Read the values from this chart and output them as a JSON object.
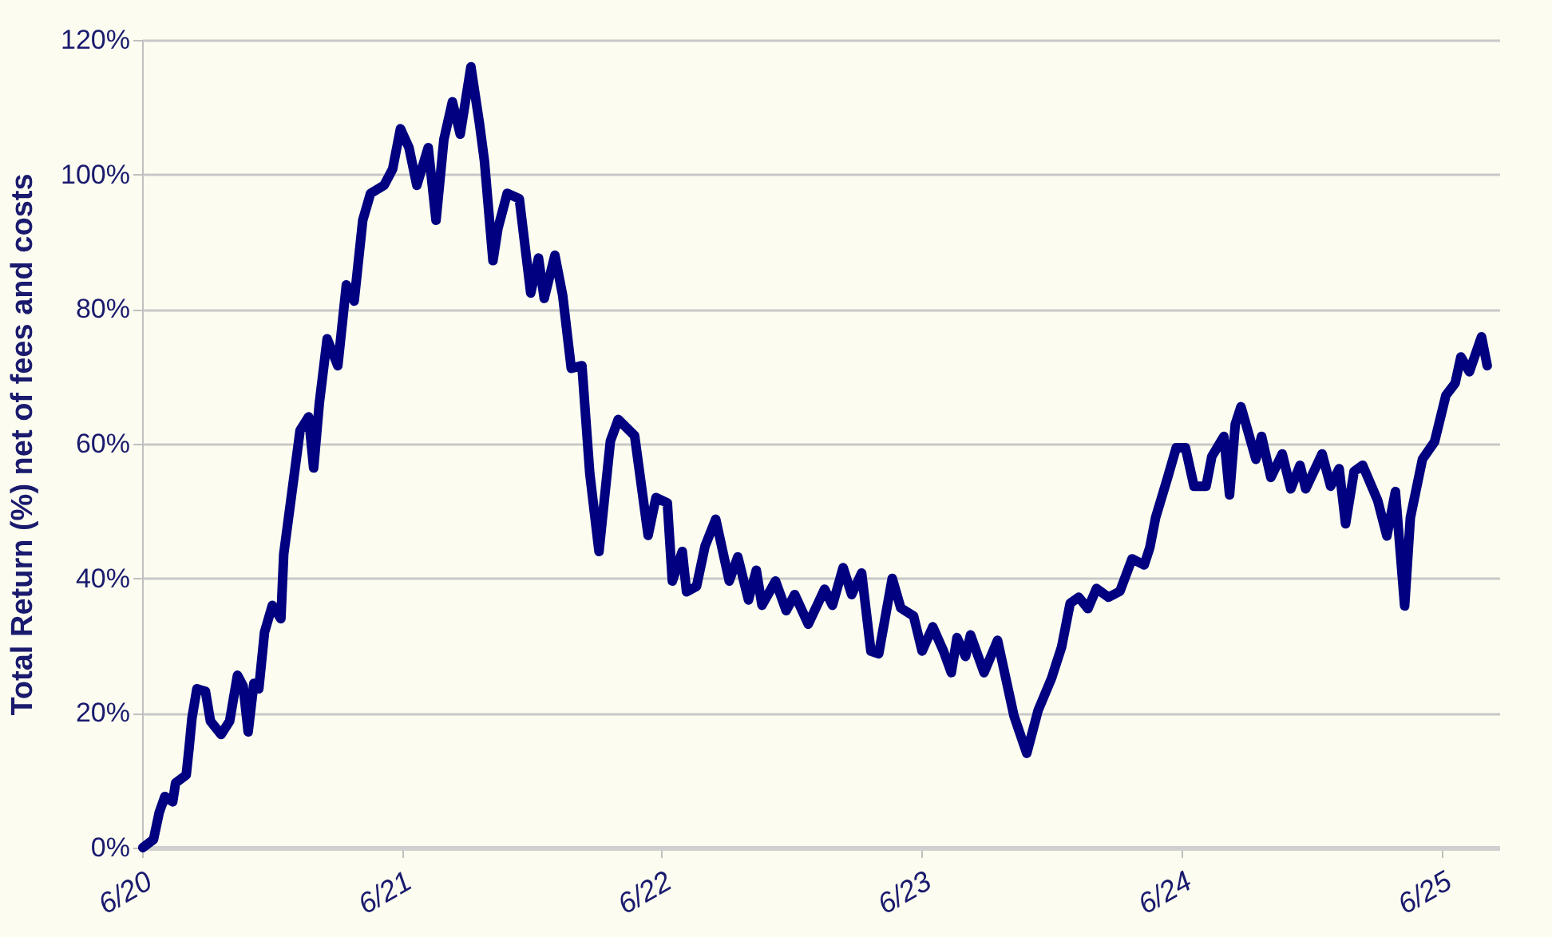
{
  "chart_data": {
    "type": "line",
    "ylabel": "Total Return (%) net of fees and costs",
    "x": [
      "2020-07-01",
      "2020-07-16",
      "2020-07-24",
      "2020-08-01",
      "2020-08-12",
      "2020-08-16",
      "2020-08-31",
      "2020-09-04",
      "2020-09-08",
      "2020-09-15",
      "2020-09-27",
      "2020-10-04",
      "2020-10-19",
      "2020-10-31",
      "2020-11-11",
      "2020-11-19",
      "2020-11-26",
      "2020-12-04",
      "2020-12-11",
      "2020-12-19",
      "2020-12-30",
      "2021-01-11",
      "2021-01-15",
      "2021-01-27",
      "2021-02-07",
      "2021-02-19",
      "2021-02-26",
      "2021-03-06",
      "2021-03-17",
      "2021-04-01",
      "2021-04-13",
      "2021-04-24",
      "2021-05-06",
      "2021-05-17",
      "2021-06-05",
      "2021-06-17",
      "2021-06-28",
      "2021-07-10",
      "2021-07-21",
      "2021-08-06",
      "2021-08-17",
      "2021-08-28",
      "2021-09-09",
      "2021-09-20",
      "2021-10-05",
      "2021-10-17",
      "2021-10-24",
      "2021-11-05",
      "2021-11-12",
      "2021-11-25",
      "2021-12-12",
      "2021-12-28",
      "2022-01-08",
      "2022-01-16",
      "2022-01-31",
      "2022-02-11",
      "2022-02-23",
      "2022-03-10",
      "2022-03-21",
      "2022-04-03",
      "2022-04-19",
      "2022-04-30",
      "2022-05-23",
      "2022-06-11",
      "2022-06-22",
      "2022-07-08",
      "2022-07-15",
      "2022-07-29",
      "2022-08-04",
      "2022-08-18",
      "2022-08-30",
      "2022-09-14",
      "2022-10-03",
      "2022-10-15",
      "2022-10-30",
      "2022-11-10",
      "2022-11-18",
      "2022-12-07",
      "2022-12-22",
      "2023-01-03",
      "2023-01-22",
      "2023-02-14",
      "2023-02-25",
      "2023-03-12",
      "2023-03-24",
      "2023-04-07",
      "2023-04-20",
      "2023-05-01",
      "2023-05-20",
      "2023-06-01",
      "2023-06-19",
      "2023-07-01",
      "2023-07-16",
      "2023-07-31",
      "2023-08-11",
      "2023-08-19",
      "2023-08-31",
      "2023-09-07",
      "2023-09-26",
      "2023-10-15",
      "2023-11-07",
      "2023-11-25",
      "2023-12-11",
      "2023-12-30",
      "2024-01-05",
      "2024-01-13",
      "2024-01-25",
      "2024-02-06",
      "2024-02-19",
      "2024-03-02",
      "2024-03-19",
      "2024-04-04",
      "2024-04-21",
      "2024-05-08",
      "2024-05-16",
      "2024-05-24",
      "2024-06-10",
      "2024-06-22",
      "2024-07-05",
      "2024-07-17",
      "2024-08-03",
      "2024-08-11",
      "2024-08-28",
      "2024-09-05",
      "2024-09-13",
      "2024-09-21",
      "2024-10-12",
      "2024-10-20",
      "2024-11-02",
      "2024-11-18",
      "2024-11-30",
      "2024-12-13",
      "2024-12-21",
      "2025-01-13",
      "2025-01-25",
      "2025-02-06",
      "2025-02-15",
      "2025-02-27",
      "2025-03-11",
      "2025-04-01",
      "2025-04-14",
      "2025-04-26",
      "2025-05-09",
      "2025-05-17",
      "2025-06-03",
      "2025-06-20",
      "2025-07-06",
      "2025-07-19",
      "2025-07-27",
      "2025-08-08",
      "2025-08-25",
      "2025-09-02"
    ],
    "series": [
      {
        "color": "#000080",
        "values": [
          0,
          1.2,
          5.2,
          7.6,
          6.8,
          9.6,
          10.8,
          14.8,
          19.2,
          23.6,
          23.2,
          18.8,
          16.8,
          18.8,
          25.6,
          24,
          17.2,
          24.4,
          23.6,
          32,
          36,
          34,
          43.6,
          53.2,
          62,
          64,
          56.4,
          66,
          75.6,
          71.6,
          83.6,
          81.2,
          93.2,
          97.2,
          98.4,
          100.8,
          106.8,
          104,
          98.4,
          104,
          93.2,
          105.2,
          110.8,
          106,
          116,
          107.6,
          102,
          87.2,
          92,
          97.2,
          96.4,
          82.4,
          87.6,
          81.6,
          88,
          82,
          71.2,
          71.6,
          55.6,
          44,
          60.4,
          63.6,
          61.2,
          46.4,
          52,
          51.2,
          39.6,
          44,
          38,
          38.8,
          44.8,
          48.8,
          39.6,
          43.2,
          36.8,
          41.2,
          36,
          39.6,
          35.2,
          37.6,
          33.2,
          38.4,
          36,
          41.6,
          37.6,
          40.8,
          29.2,
          28.8,
          40,
          35.6,
          34.4,
          29.2,
          32.8,
          29.2,
          26,
          31.2,
          28.4,
          31.6,
          26,
          30.8,
          19.6,
          14,
          20.4,
          25.2,
          27.2,
          29.8,
          36.3,
          37.2,
          35.5,
          38.5,
          37.2,
          38.1,
          42.9,
          42,
          44.6,
          49,
          55,
          59.4,
          59.4,
          53.7,
          53.7,
          58.1,
          61.1,
          52.4,
          62.9,
          65.5,
          57.7,
          61.1,
          55,
          58.5,
          53.3,
          56.8,
          53.3,
          58.5,
          53.7,
          56.3,
          48.1,
          55.9,
          56.8,
          51.6,
          46.3,
          52.9,
          35.9,
          49,
          57.7,
          60.3,
          67.2,
          69,
          72.9,
          70.7,
          75.9,
          71.6
        ]
      }
    ],
    "xlim": [
      "2020-06-30",
      "2025-09-19"
    ],
    "xticks": [
      {
        "value": "2020-06-30",
        "label": "6/20"
      },
      {
        "value": "2021-06-30",
        "label": "6/21"
      },
      {
        "value": "2022-06-30",
        "label": "6/22"
      },
      {
        "value": "2023-06-30",
        "label": "6/23"
      },
      {
        "value": "2024-06-30",
        "label": "6/24"
      },
      {
        "value": "2025-06-30",
        "label": "6/25"
      }
    ],
    "ylim": [
      0,
      120
    ],
    "yticks": [
      {
        "value": 0,
        "label": "0%"
      },
      {
        "value": 20,
        "label": "20%"
      },
      {
        "value": 40,
        "label": "40%"
      },
      {
        "value": 60,
        "label": "60%"
      },
      {
        "value": 80,
        "label": "80%"
      },
      {
        "value": 100,
        "label": "100%"
      },
      {
        "value": 120,
        "label": "120%"
      }
    ],
    "grid": "y",
    "marker": "none",
    "line_style": "solid"
  }
}
